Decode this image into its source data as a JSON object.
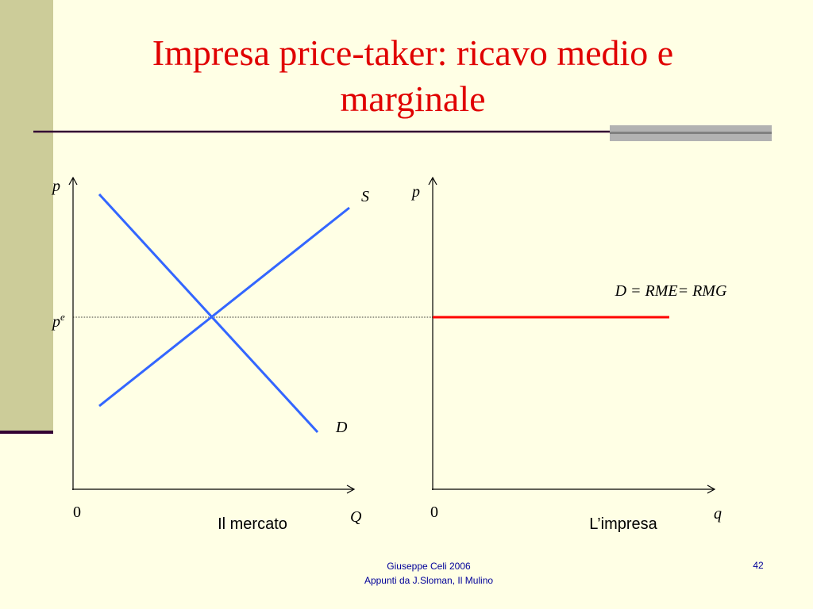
{
  "title": "Impresa price-taker: ricavo medio e marginale",
  "market": {
    "y_label": "p",
    "price_label": {
      "base": "p",
      "sup": "e"
    },
    "supply_label": "S",
    "demand_label": "D",
    "origin": "0",
    "x_label": "Q",
    "caption": "Il mercato"
  },
  "firm": {
    "y_label": "p",
    "curve_label": "D = RME= RMG",
    "origin": "0",
    "x_label": "q",
    "caption": "L’impresa"
  },
  "footer": {
    "credit": [
      "Giuseppe Celi 2006",
      "Appunti da J.Sloman, Il Mulino"
    ],
    "page": 42
  }
}
